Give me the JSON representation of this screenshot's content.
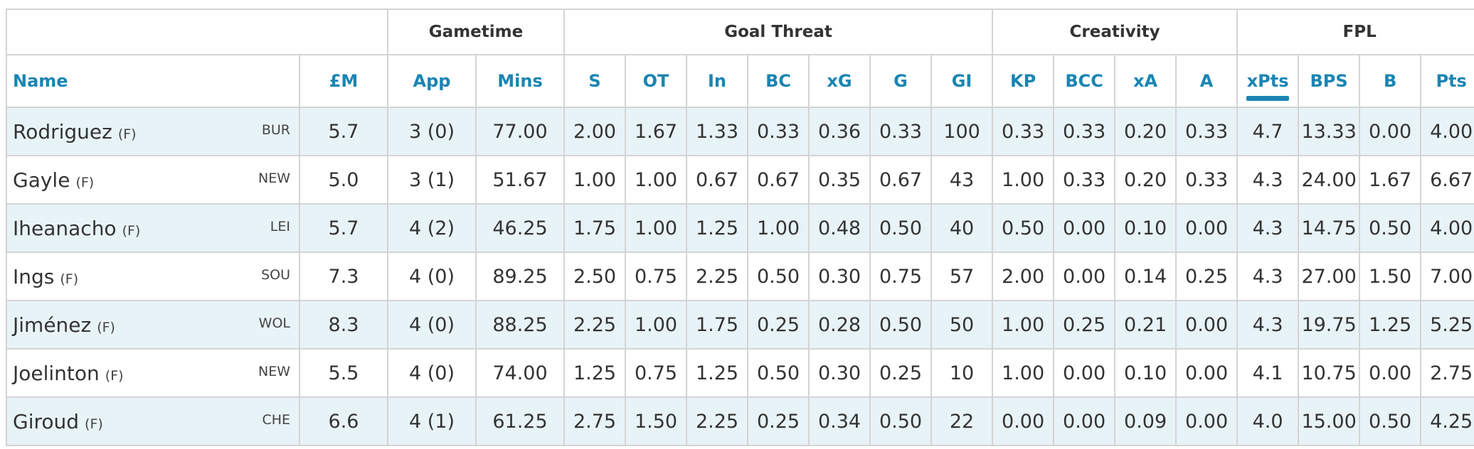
{
  "groups": {
    "gametime": "Gametime",
    "goal_threat": "Goal Threat",
    "creativity": "Creativity",
    "fpl": "FPL"
  },
  "columns": {
    "name": "Name",
    "price": "£M",
    "app": "App",
    "mins": "Mins",
    "s": "S",
    "ot": "OT",
    "in": "In",
    "bc": "BC",
    "xg": "xG",
    "g": "G",
    "gi": "GI",
    "kp": "KP",
    "bcc": "BCC",
    "xa": "xA",
    "a": "A",
    "xpts": "xPts",
    "bps": "BPS",
    "b": "B",
    "pts": "Pts"
  },
  "sorted_column": "xPts",
  "accent_color": "#1a85b3",
  "rows": [
    {
      "name": "Rodriguez",
      "pos": "(F)",
      "team": "BUR",
      "price": "5.7",
      "app": "3 (0)",
      "mins": "77.00",
      "s": "2.00",
      "ot": "1.67",
      "in": "1.33",
      "bc": "0.33",
      "xg": "0.36",
      "g": "0.33",
      "gi": "100",
      "kp": "0.33",
      "bcc": "0.33",
      "xa": "0.20",
      "a": "0.33",
      "xpts": "4.7",
      "bps": "13.33",
      "b": "0.00",
      "pts": "4.00"
    },
    {
      "name": "Gayle",
      "pos": "(F)",
      "team": "NEW",
      "price": "5.0",
      "app": "3 (1)",
      "mins": "51.67",
      "s": "1.00",
      "ot": "1.00",
      "in": "0.67",
      "bc": "0.67",
      "xg": "0.35",
      "g": "0.67",
      "gi": "43",
      "kp": "1.00",
      "bcc": "0.33",
      "xa": "0.20",
      "a": "0.33",
      "xpts": "4.3",
      "bps": "24.00",
      "b": "1.67",
      "pts": "6.67"
    },
    {
      "name": "Iheanacho",
      "pos": "(F)",
      "team": "LEI",
      "price": "5.7",
      "app": "4 (2)",
      "mins": "46.25",
      "s": "1.75",
      "ot": "1.00",
      "in": "1.25",
      "bc": "1.00",
      "xg": "0.48",
      "g": "0.50",
      "gi": "40",
      "kp": "0.50",
      "bcc": "0.00",
      "xa": "0.10",
      "a": "0.00",
      "xpts": "4.3",
      "bps": "14.75",
      "b": "0.50",
      "pts": "4.00"
    },
    {
      "name": "Ings",
      "pos": "(F)",
      "team": "SOU",
      "price": "7.3",
      "app": "4 (0)",
      "mins": "89.25",
      "s": "2.50",
      "ot": "0.75",
      "in": "2.25",
      "bc": "0.50",
      "xg": "0.30",
      "g": "0.75",
      "gi": "57",
      "kp": "2.00",
      "bcc": "0.00",
      "xa": "0.14",
      "a": "0.25",
      "xpts": "4.3",
      "bps": "27.00",
      "b": "1.50",
      "pts": "7.00"
    },
    {
      "name": "Jiménez",
      "pos": "(F)",
      "team": "WOL",
      "price": "8.3",
      "app": "4 (0)",
      "mins": "88.25",
      "s": "2.25",
      "ot": "1.00",
      "in": "1.75",
      "bc": "0.25",
      "xg": "0.28",
      "g": "0.50",
      "gi": "50",
      "kp": "1.00",
      "bcc": "0.25",
      "xa": "0.21",
      "a": "0.00",
      "xpts": "4.3",
      "bps": "19.75",
      "b": "1.25",
      "pts": "5.25"
    },
    {
      "name": "Joelinton",
      "pos": "(F)",
      "team": "NEW",
      "price": "5.5",
      "app": "4 (0)",
      "mins": "74.00",
      "s": "1.25",
      "ot": "0.75",
      "in": "1.25",
      "bc": "0.50",
      "xg": "0.30",
      "g": "0.25",
      "gi": "10",
      "kp": "1.00",
      "bcc": "0.00",
      "xa": "0.10",
      "a": "0.00",
      "xpts": "4.1",
      "bps": "10.75",
      "b": "0.00",
      "pts": "2.75"
    },
    {
      "name": "Giroud",
      "pos": "(F)",
      "team": "CHE",
      "price": "6.6",
      "app": "4 (1)",
      "mins": "61.25",
      "s": "2.75",
      "ot": "1.50",
      "in": "2.25",
      "bc": "0.25",
      "xg": "0.34",
      "g": "0.50",
      "gi": "22",
      "kp": "0.00",
      "bcc": "0.00",
      "xa": "0.09",
      "a": "0.00",
      "xpts": "4.0",
      "bps": "15.00",
      "b": "0.50",
      "pts": "4.25"
    }
  ]
}
